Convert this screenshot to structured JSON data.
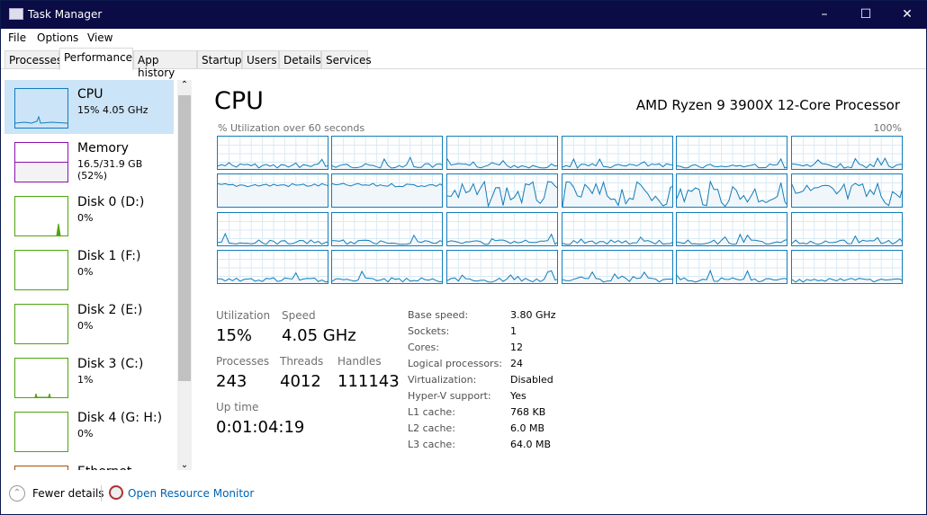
{
  "window": {
    "title": "Task Manager"
  },
  "menu": [
    "File",
    "Options",
    "View"
  ],
  "tabs": [
    "Processes",
    "Performance",
    "App history",
    "Startup",
    "Users",
    "Details",
    "Services"
  ],
  "sidebar": [
    {
      "name": "CPU",
      "value": "15% 4.05 GHz",
      "color": "#117dbb"
    },
    {
      "name": "Memory",
      "value": "16.5/31.9 GB (52%)",
      "color": "#8b12ae"
    },
    {
      "name": "Disk 0 (D:)",
      "value": "0%",
      "color": "#4da60c"
    },
    {
      "name": "Disk 1 (F:)",
      "value": "0%",
      "color": "#4da60c"
    },
    {
      "name": "Disk 2 (E:)",
      "value": "0%",
      "color": "#4da60c"
    },
    {
      "name": "Disk 3 (C:)",
      "value": "1%",
      "color": "#4da60c"
    },
    {
      "name": "Disk 4 (G: H:)",
      "value": "0%",
      "color": "#4da60c"
    },
    {
      "name": "Ethernet",
      "value": "",
      "color": "#a74f01"
    }
  ],
  "main": {
    "title": "CPU",
    "processor": "AMD Ryzen 9 3900X 12-Core Processor",
    "graph_label": "% Utilization over 60 seconds",
    "graph_max": "100%",
    "stats": {
      "utilization_label": "Utilization",
      "utilization": "15%",
      "speed_label": "Speed",
      "speed": "4.05 GHz",
      "processes_label": "Processes",
      "processes": "243",
      "threads_label": "Threads",
      "threads": "4012",
      "handles_label": "Handles",
      "handles": "111143",
      "uptime_label": "Up time",
      "uptime": "0:01:04:19"
    },
    "specs": [
      {
        "k": "Base speed:",
        "v": "3.80 GHz"
      },
      {
        "k": "Sockets:",
        "v": "1"
      },
      {
        "k": "Cores:",
        "v": "12"
      },
      {
        "k": "Logical processors:",
        "v": "24"
      },
      {
        "k": "Virtualization:",
        "v": "Disabled"
      },
      {
        "k": "Hyper-V support:",
        "v": "Yes"
      },
      {
        "k": "L1 cache:",
        "v": "768 KB"
      },
      {
        "k": "L2 cache:",
        "v": "6.0 MB"
      },
      {
        "k": "L3 cache:",
        "v": "64.0 MB"
      }
    ]
  },
  "footer": {
    "fewer": "Fewer details",
    "monitor": "Open Resource Monitor"
  }
}
